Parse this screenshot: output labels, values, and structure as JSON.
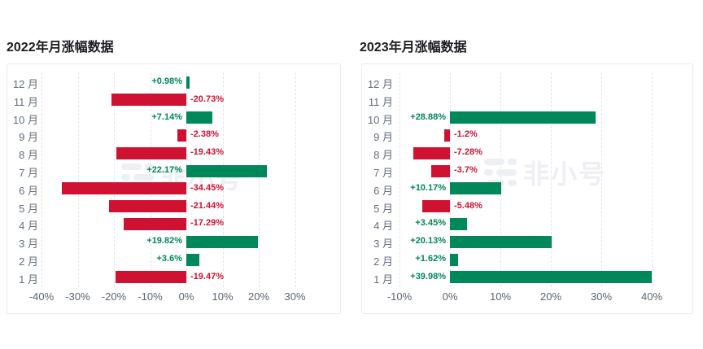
{
  "watermark": {
    "text": "非小号"
  },
  "colors": {
    "positive": "#00875a",
    "negative": "#d01232",
    "grid": "#e2e5ea",
    "panel_border": "#e8ebf0",
    "title": "#1b1d21",
    "axis_label": "#5a6470",
    "watermark": "#edeff4"
  },
  "chart_data": [
    {
      "type": "bar",
      "orientation": "horizontal",
      "title": "2022年月涨幅数据",
      "xlabel": "",
      "ylabel": "",
      "categories": [
        "12 月",
        "11 月",
        "10 月",
        "9 月",
        "8 月",
        "7 月",
        "6 月",
        "5 月",
        "4 月",
        "3 月",
        "2 月",
        "1 月"
      ],
      "values": [
        0.98,
        -20.73,
        7.14,
        -2.38,
        -19.43,
        22.17,
        -34.45,
        -21.44,
        -17.29,
        19.82,
        3.6,
        -19.47
      ],
      "value_labels": [
        "+0.98%",
        "-20.73%",
        "+7.14%",
        "-2.38%",
        "-19.43%",
        "+22.17%",
        "-34.45%",
        "-21.44%",
        "-17.29%",
        "+19.82%",
        "+3.6%",
        "-19.47%"
      ],
      "x_ticks": [
        -40,
        -30,
        -20,
        -10,
        0,
        10,
        20,
        30
      ],
      "x_tick_labels": [
        "-40%",
        "-30%",
        "-20%",
        "-10%",
        "0%",
        "10%",
        "20%",
        "30%"
      ],
      "xlim": [
        -49,
        43
      ],
      "grid": "vertical-dashed",
      "legend": "none"
    },
    {
      "type": "bar",
      "orientation": "horizontal",
      "title": "2023年月涨幅数据",
      "xlabel": "",
      "ylabel": "",
      "categories": [
        "12 月",
        "11 月",
        "10 月",
        "9 月",
        "8 月",
        "7 月",
        "6 月",
        "5 月",
        "4 月",
        "3 月",
        "2 月",
        "1 月"
      ],
      "values": [
        null,
        null,
        28.88,
        -1.2,
        -7.28,
        -3.7,
        10.17,
        -5.48,
        3.45,
        20.13,
        1.62,
        39.98
      ],
      "value_labels": [
        "",
        "",
        "+28.88%",
        "-1.2%",
        "-7.28%",
        "-3.7%",
        "+10.17%",
        "-5.48%",
        "+3.45%",
        "+20.13%",
        "+1.62%",
        "+39.98%"
      ],
      "x_ticks": [
        -10,
        0,
        10,
        20,
        30,
        40
      ],
      "x_tick_labels": [
        "-10%",
        "0%",
        "10%",
        "20%",
        "30%",
        "40%"
      ],
      "xlim": [
        -17,
        48
      ],
      "grid": "vertical-dashed",
      "legend": "none"
    }
  ]
}
